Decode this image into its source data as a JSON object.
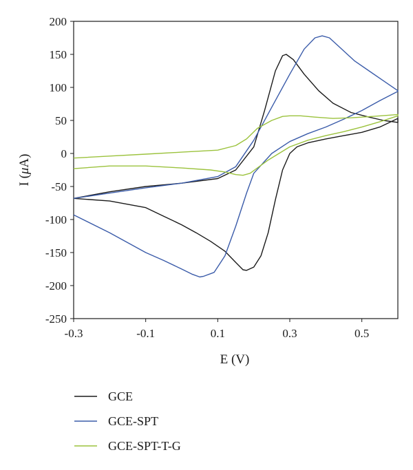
{
  "chart_data": {
    "type": "line",
    "title": "",
    "xlabel": "E (V)",
    "ylabel_prefix": "I (",
    "ylabel_unit_mu": "μ",
    "ylabel_suffix": "A)",
    "xlim": [
      -0.3,
      0.6
    ],
    "ylim": [
      -250,
      200
    ],
    "xticks": [
      -0.3,
      -0.1,
      0.1,
      0.3,
      0.5
    ],
    "xtick_labels": [
      "-0.3",
      "-0.1",
      "0.1",
      "0.3",
      "0.5"
    ],
    "yticks": [
      -250,
      -200,
      -150,
      -100,
      -50,
      0,
      50,
      100,
      150,
      200
    ],
    "ytick_labels": [
      "-250",
      "-200",
      "-150",
      "-100",
      "-50",
      "0",
      "50",
      "100",
      "150",
      "200"
    ],
    "grid": false,
    "legend_position": "bottom",
    "series": [
      {
        "name": "GCE",
        "color": "#1a1a1a",
        "x": [
          -0.3,
          -0.2,
          -0.1,
          0.0,
          0.1,
          0.15,
          0.2,
          0.23,
          0.26,
          0.28,
          0.29,
          0.31,
          0.34,
          0.38,
          0.42,
          0.47,
          0.52,
          0.56,
          0.6,
          0.6,
          0.55,
          0.5,
          0.45,
          0.4,
          0.35,
          0.32,
          0.3,
          0.28,
          0.26,
          0.24,
          0.22,
          0.2,
          0.18,
          0.17,
          0.15,
          0.12,
          0.08,
          0.04,
          0.0,
          -0.05,
          -0.1,
          -0.2,
          -0.3
        ],
        "y": [
          -68,
          -58,
          -50,
          -45,
          -38,
          -25,
          10,
          65,
          125,
          148,
          150,
          142,
          120,
          95,
          76,
          62,
          55,
          50,
          47,
          53,
          40,
          32,
          27,
          22,
          16,
          10,
          0,
          -25,
          -70,
          -120,
          -155,
          -172,
          -177,
          -176,
          -165,
          -148,
          -133,
          -120,
          -108,
          -95,
          -82,
          -72,
          -68
        ]
      },
      {
        "name": "GCE-SPT",
        "color": "#3a5ba9",
        "x": [
          -0.3,
          -0.2,
          -0.1,
          0.0,
          0.1,
          0.15,
          0.2,
          0.25,
          0.3,
          0.34,
          0.37,
          0.39,
          0.41,
          0.44,
          0.48,
          0.52,
          0.56,
          0.6,
          0.6,
          0.55,
          0.5,
          0.45,
          0.4,
          0.35,
          0.3,
          0.25,
          0.2,
          0.18,
          0.15,
          0.12,
          0.09,
          0.06,
          0.05,
          0.03,
          0.0,
          -0.05,
          -0.1,
          -0.2,
          -0.3
        ],
        "y": [
          -68,
          -60,
          -52,
          -45,
          -35,
          -20,
          20,
          70,
          120,
          158,
          175,
          178,
          175,
          160,
          140,
          125,
          110,
          95,
          94,
          80,
          65,
          52,
          40,
          30,
          18,
          0,
          -30,
          -60,
          -110,
          -155,
          -180,
          -186,
          -187,
          -183,
          -175,
          -162,
          -150,
          -120,
          -93
        ]
      },
      {
        "name": "GCE-SPT-T-G",
        "color": "#9bc23c",
        "x": [
          -0.3,
          -0.2,
          -0.1,
          0.0,
          0.1,
          0.15,
          0.18,
          0.21,
          0.25,
          0.28,
          0.3,
          0.33,
          0.37,
          0.42,
          0.47,
          0.53,
          0.6,
          0.6,
          0.55,
          0.5,
          0.45,
          0.4,
          0.35,
          0.3,
          0.27,
          0.24,
          0.21,
          0.19,
          0.17,
          0.15,
          0.12,
          0.08,
          0.0,
          -0.1,
          -0.2,
          -0.3
        ],
        "y": [
          -7,
          -4,
          -1,
          2,
          5,
          12,
          22,
          38,
          50,
          56,
          57,
          57,
          55,
          53,
          54,
          56,
          59,
          57,
          48,
          40,
          33,
          27,
          20,
          10,
          0,
          -10,
          -22,
          -30,
          -33,
          -32,
          -28,
          -25,
          -22,
          -19,
          -19,
          -23
        ]
      }
    ]
  }
}
